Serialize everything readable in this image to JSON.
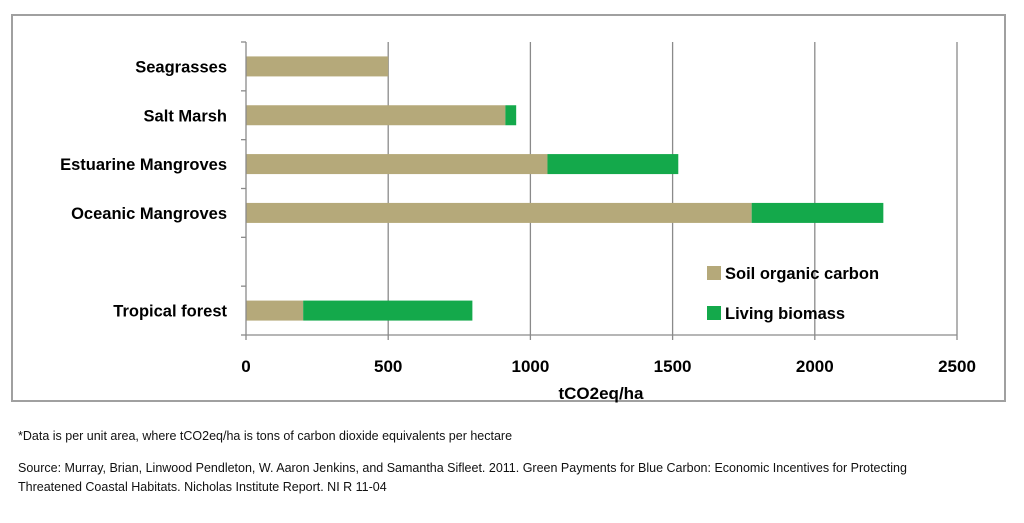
{
  "chart_data": {
    "type": "bar",
    "orientation": "horizontal",
    "stacked": true,
    "categories": [
      "Seagrasses",
      "Salt Marsh",
      "Estuarine Mangroves",
      "Oceanic Mangroves",
      "",
      "Tropical forest"
    ],
    "series": [
      {
        "name": "Soil organic carbon",
        "color": "#b5a97a",
        "values": [
          500,
          912,
          1060,
          1778,
          null,
          201
        ]
      },
      {
        "name": "Living biomass",
        "color": "#14a94b",
        "values": [
          0,
          38,
          460,
          463,
          null,
          595
        ]
      }
    ],
    "xlabel": "tCO2eq/ha",
    "ylabel": "",
    "xlim": [
      0,
      2500
    ],
    "xticks": [
      "0",
      "500",
      "1000",
      "1500",
      "2000",
      "2500"
    ],
    "grid": "vertical",
    "legend_position": "bottom-right"
  },
  "notes": {
    "footnote": "*Data is per unit area, where tCO2eq/ha is tons of carbon dioxide equivalents per hectare",
    "source_line1": "Source: Murray, Brian, Linwood Pendleton, W. Aaron Jenkins, and Samantha Sifleet. 2011. Green Payments for Blue Carbon: Economic Incentives for Protecting",
    "source_line2": "Threatened Coastal Habitats. Nicholas Institute Report. NI R 11-04"
  }
}
